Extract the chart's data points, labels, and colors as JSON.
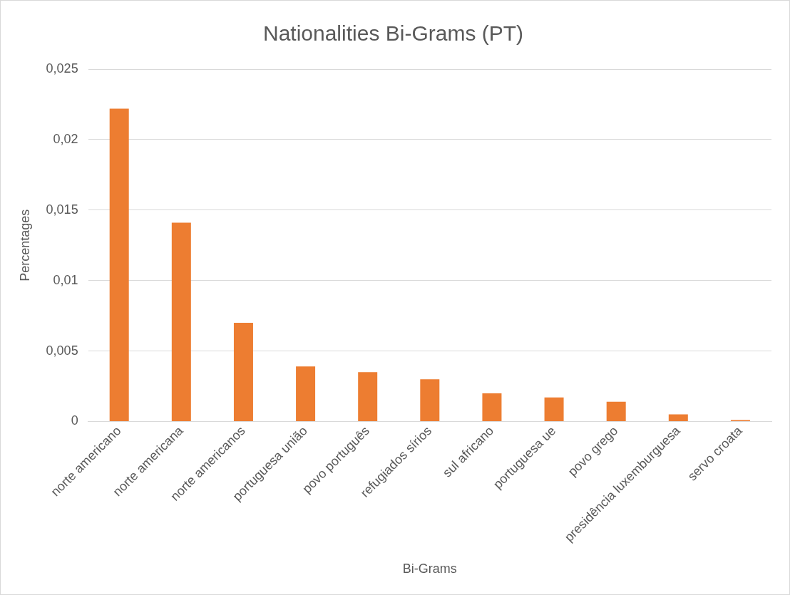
{
  "chart_data": {
    "type": "bar",
    "title": "Nationalities Bi-Grams (PT)",
    "xlabel": "Bi-Grams",
    "ylabel": "Percentages",
    "categories": [
      "norte americano",
      "norte americana",
      "norte americanos",
      "portuguesa união",
      "povo português",
      "refugiados sírios",
      "sul africano",
      "portuguesa ue",
      "povo grego",
      "presidência luxemburguesa",
      "servo croata"
    ],
    "values": [
      0.0222,
      0.0141,
      0.007,
      0.0039,
      0.0035,
      0.003,
      0.002,
      0.0017,
      0.0014,
      0.0005,
      0.0001
    ],
    "color": "#ed7d31",
    "ylim": [
      0,
      0.025
    ],
    "yticks": [
      0,
      {
        "value": 0.005,
        "label": "0,005"
      },
      {
        "value": 0.01,
        "label": "0,01"
      },
      {
        "value": 0.015,
        "label": "0,015"
      },
      {
        "value": 0.02,
        "label": "0,02"
      },
      {
        "value": 0.025,
        "label": "0,025"
      }
    ],
    "grid": "y"
  }
}
